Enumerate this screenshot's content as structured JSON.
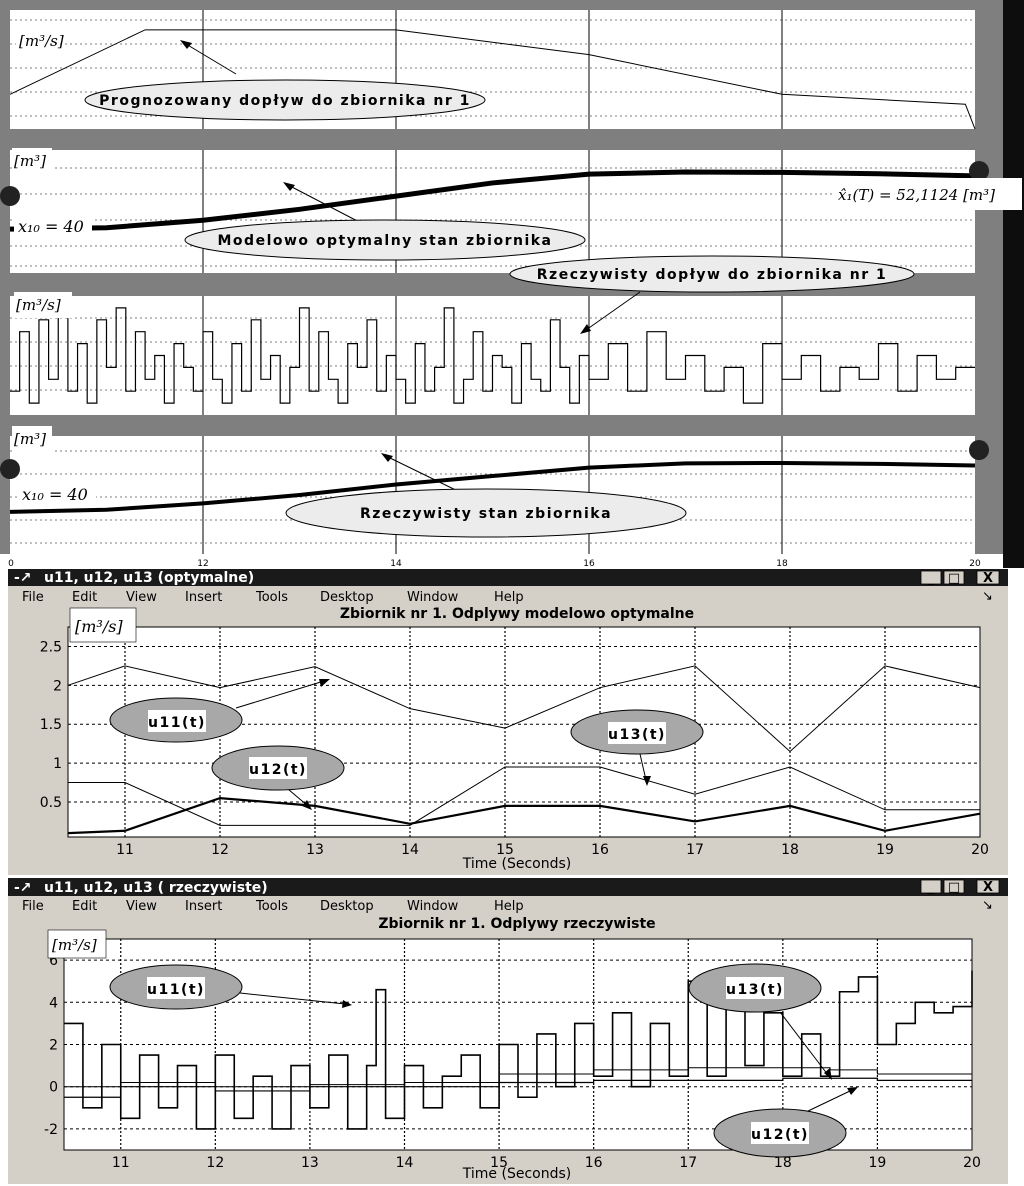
{
  "top_panels": {
    "x_ticks": [
      "0",
      "12",
      "14",
      "16",
      "18",
      "20"
    ],
    "unit_flow": "[m³/s]",
    "unit_volume": "[m³]",
    "initial_state_label": "x₁₀ = 40",
    "final_state_label": "x̂₁(T) = 52,1124 [m³]",
    "callouts": {
      "forecast_inflow": "Prognozowany dopływ do zbiornika nr 1",
      "model_optimal_state": "Modelowo optymalny stan zbiornika",
      "actual_inflow": "Rzeczywisty dopływ do zbiornika nr 1",
      "actual_state": "Rzeczywisty stan zbiornika"
    }
  },
  "window_optimal": {
    "title": "u11, u12, u13 (optymalne)",
    "menu": [
      "File",
      "Edit",
      "View",
      "Insert",
      "Tools",
      "Desktop",
      "Window",
      "Help"
    ],
    "controls": [
      "_",
      "□",
      "X"
    ],
    "plot_title": "Zbiornik nr 1. Odplywy modelowo optymalne",
    "unit": "[m³/s]",
    "callouts": {
      "u11": "u11(t)",
      "u12": "u12(t)",
      "u13": "u13(t)"
    }
  },
  "window_actual": {
    "title": "u11, u12, u13 ( rzeczywiste)",
    "menu": [
      "File",
      "Edit",
      "View",
      "Insert",
      "Tools",
      "Desktop",
      "Window",
      "Help"
    ],
    "controls": [
      "_",
      "□",
      "X"
    ],
    "plot_title": "Zbiornik nr 1. Odplywy rzeczywiste",
    "unit": "[m³/s]",
    "callouts": {
      "u11": "u11(t)",
      "u12": "u12(t)",
      "u13": "u13(t)"
    }
  },
  "colors": {
    "panel_gray": "#7f7f7f",
    "window_gray": "#d4d0c8",
    "titlebar_dark": "#1a1a1a",
    "callout_fill": "#cfcfcf",
    "line": "#000000"
  },
  "chart_data": [
    {
      "type": "line",
      "title": "",
      "ylabel": "[m³/s]",
      "xlim": [
        10,
        20
      ],
      "x_tick_labels": [
        "0",
        "12",
        "14",
        "16",
        "18",
        "20"
      ],
      "series": [
        {
          "name": "Prognozowany dopływ do zbiornika nr 1",
          "x": [
            10,
            11.4,
            11.5,
            14,
            16,
            18,
            19.9,
            20
          ],
          "y": [
            0.35,
            1.0,
            1.0,
            1.0,
            0.75,
            0.35,
            0.25,
            0.0
          ]
        }
      ]
    },
    {
      "type": "line",
      "title": "",
      "ylabel": "[m³]",
      "xlim": [
        10,
        20
      ],
      "series": [
        {
          "name": "Modelowo optymalny stan zbiornika",
          "x": [
            10,
            11,
            12,
            13,
            14,
            15,
            16,
            17,
            18,
            19,
            20
          ],
          "y": [
            40,
            40.3,
            42,
            44.5,
            47.5,
            50.5,
            52.5,
            53.0,
            52.9,
            52.6,
            52.1124
          ]
        }
      ]
    },
    {
      "type": "line",
      "title": "",
      "ylabel": "[m³/s]",
      "xlim": [
        10,
        20
      ],
      "series": [
        {
          "name": "Rzeczywisty dopływ do zbiornika nr 1",
          "x": [
            10.0,
            10.1,
            10.2,
            10.3,
            10.4,
            10.5,
            10.6,
            10.7,
            10.8,
            10.9,
            11.0,
            11.1,
            11.2,
            11.3,
            11.4,
            11.5,
            11.6,
            11.7,
            11.8,
            11.9,
            12.0,
            12.1,
            12.2,
            12.3,
            12.4,
            12.5,
            12.6,
            12.7,
            12.8,
            12.9,
            13.0,
            13.1,
            13.2,
            13.3,
            13.4,
            13.5,
            13.6,
            13.7,
            13.8,
            13.9,
            14.0,
            14.1,
            14.2,
            14.3,
            14.4,
            14.5,
            14.6,
            14.7,
            14.8,
            14.9,
            15.0,
            15.1,
            15.2,
            15.3,
            15.4,
            15.5,
            15.6,
            15.7,
            15.8,
            15.9,
            16.0,
            16.2,
            16.4,
            16.6,
            16.8,
            17.0,
            17.2,
            17.4,
            17.6,
            17.8,
            18.0,
            18.2,
            18.4,
            18.6,
            18.8,
            19.0,
            19.2,
            19.4,
            19.6,
            19.8,
            20.0
          ],
          "y": [
            0.2,
            0.7,
            0.1,
            0.8,
            0.3,
            0.9,
            0.2,
            0.6,
            0.1,
            0.8,
            0.4,
            0.9,
            0.2,
            0.7,
            0.3,
            0.5,
            0.1,
            0.6,
            0.4,
            0.2,
            0.7,
            0.3,
            0.1,
            0.6,
            0.2,
            0.8,
            0.3,
            0.5,
            0.1,
            0.4,
            0.9,
            0.2,
            0.7,
            0.3,
            0.1,
            0.6,
            0.4,
            0.8,
            0.2,
            0.5,
            0.3,
            0.1,
            0.6,
            0.2,
            0.4,
            0.9,
            0.1,
            0.3,
            0.7,
            0.2,
            0.5,
            0.4,
            0.1,
            0.6,
            0.3,
            0.2,
            0.8,
            0.4,
            0.1,
            0.5,
            0.3,
            0.6,
            0.2,
            0.7,
            0.3,
            0.5,
            0.2,
            0.4,
            0.1,
            0.6,
            0.3,
            0.5,
            0.2,
            0.4,
            0.3,
            0.6,
            0.2,
            0.5,
            0.3,
            0.4,
            0.5
          ]
        }
      ]
    },
    {
      "type": "line",
      "title": "",
      "ylabel": "[m³]",
      "xlim": [
        10,
        20
      ],
      "series": [
        {
          "name": "Rzeczywisty stan zbiornika",
          "x": [
            10,
            11,
            12,
            13,
            14,
            15,
            16,
            17,
            18,
            19,
            20
          ],
          "y": [
            40,
            40.5,
            42,
            44,
            46.5,
            48.5,
            50.5,
            51.5,
            51.6,
            51.4,
            51.0
          ]
        }
      ]
    },
    {
      "type": "line",
      "title": "Zbiornik nr 1. Odplywy modelowo optymalne",
      "xlabel": "Time (Seconds)",
      "ylabel": "[m³/s]",
      "xlim": [
        10.4,
        20
      ],
      "ylim": [
        0.05,
        2.75
      ],
      "x_ticks": [
        11,
        12,
        13,
        14,
        15,
        16,
        17,
        18,
        19,
        20
      ],
      "y_ticks": [
        0.5,
        1,
        1.5,
        2,
        2.5
      ],
      "series": [
        {
          "name": "u11(t)",
          "x": [
            10.4,
            11,
            12,
            13,
            14,
            15,
            16,
            17,
            18,
            19,
            20
          ],
          "y": [
            2.0,
            2.25,
            1.97,
            2.24,
            1.7,
            1.45,
            1.97,
            2.25,
            1.15,
            2.25,
            1.97
          ]
        },
        {
          "name": "u12(t)",
          "x": [
            10.4,
            11,
            12,
            13,
            14,
            15,
            16,
            17,
            18,
            19,
            20
          ],
          "y": [
            0.1,
            0.13,
            0.55,
            0.45,
            0.22,
            0.45,
            0.45,
            0.25,
            0.45,
            0.13,
            0.35
          ]
        },
        {
          "name": "u13(t)",
          "x": [
            10.4,
            11,
            12,
            13,
            14,
            15,
            16,
            17,
            18,
            19,
            20
          ],
          "y": [
            0.75,
            0.75,
            0.2,
            0.2,
            0.2,
            0.95,
            0.95,
            0.6,
            0.95,
            0.4,
            0.4
          ]
        }
      ]
    },
    {
      "type": "line",
      "title": "Zbiornik nr 1. Odplywy rzeczywiste",
      "xlabel": "Time (Seconds)",
      "ylabel": "[m³/s]",
      "xlim": [
        10.4,
        20
      ],
      "ylim": [
        -3,
        7
      ],
      "x_ticks": [
        11,
        12,
        13,
        14,
        15,
        16,
        17,
        18,
        19,
        20
      ],
      "y_ticks": [
        -2,
        0,
        2,
        4,
        6
      ],
      "series": [
        {
          "name": "u11(t)",
          "x": [
            10.4,
            10.6,
            10.8,
            11.0,
            11.2,
            11.4,
            11.6,
            11.8,
            12.0,
            12.2,
            12.4,
            12.6,
            12.8,
            13.0,
            13.2,
            13.4,
            13.6,
            13.7,
            13.8,
            14.0,
            14.2,
            14.4,
            14.6,
            14.8,
            15.0,
            15.2,
            15.4,
            15.6,
            15.8,
            16.0,
            16.2,
            16.4,
            16.6,
            16.8,
            17.0,
            17.2,
            17.4,
            17.6,
            17.8,
            18.0,
            18.2,
            18.4,
            18.6,
            18.8,
            19.0,
            19.2,
            19.4,
            19.6,
            19.8,
            20.0
          ],
          "y": [
            3.0,
            -1.0,
            2.0,
            -1.5,
            1.5,
            -1.0,
            1.0,
            -2.0,
            1.5,
            -1.5,
            0.5,
            -2.0,
            1.0,
            -1.0,
            1.5,
            -2.0,
            1.0,
            4.6,
            -1.5,
            1.0,
            -1.0,
            0.5,
            1.5,
            -1.0,
            2.0,
            -0.5,
            2.5,
            0.0,
            3.0,
            0.5,
            3.5,
            0.0,
            3.0,
            0.5,
            5.0,
            0.5,
            4.5,
            1.0,
            3.5,
            0.5,
            2.5,
            0.5,
            4.5,
            5.2,
            2.0,
            3.0,
            4.0,
            3.5,
            3.8,
            5.5
          ]
        },
        {
          "name": "u12(t)",
          "x": [
            10.4,
            11,
            12,
            13,
            14,
            15,
            16,
            17,
            18,
            18.5,
            19,
            20
          ],
          "y": [
            -0.5,
            0.0,
            -0.2,
            0.0,
            0.0,
            0.2,
            0.3,
            0.3,
            0.4,
            0.4,
            0.3,
            0.3
          ]
        },
        {
          "name": "u13(t)",
          "x": [
            10.4,
            11,
            12,
            13,
            14,
            15,
            16,
            17,
            18,
            18.5,
            19,
            20
          ],
          "y": [
            0.0,
            0.2,
            0.0,
            0.1,
            0.2,
            0.6,
            0.8,
            0.9,
            0.9,
            0.8,
            0.6,
            0.9
          ]
        }
      ]
    }
  ]
}
